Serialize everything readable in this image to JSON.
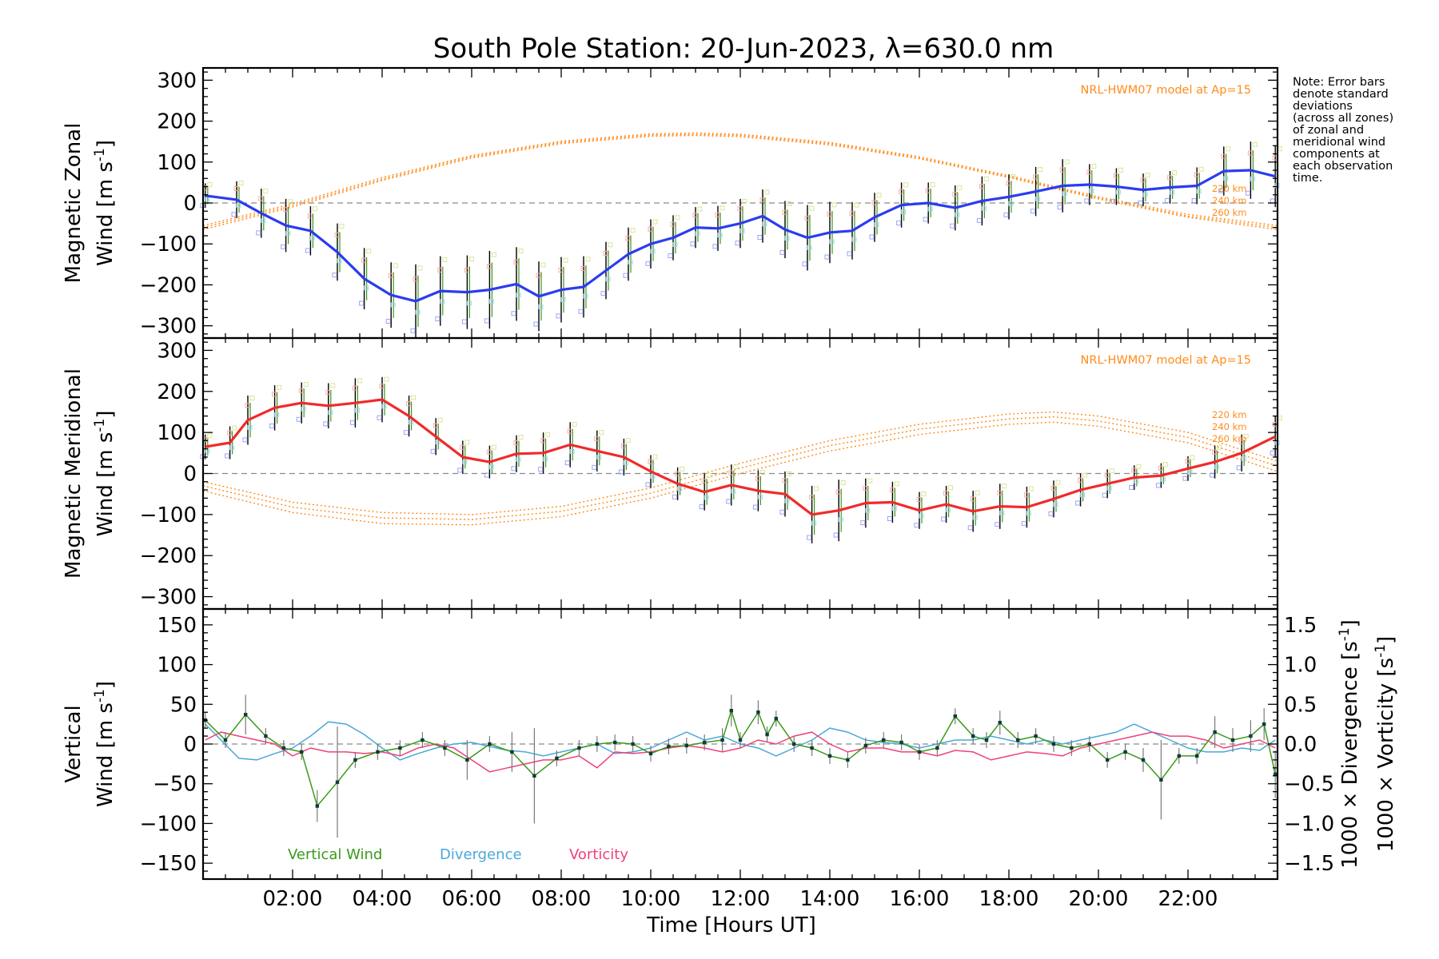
{
  "title": "South Pole Station: 20-Jun-2023, λ=630.0 nm",
  "note_lines": [
    "Note: Error bars",
    "denote standard",
    "deviations",
    "(across all zones)",
    "of zonal and",
    "meridional wind",
    "components at",
    "each observation",
    "time."
  ],
  "x_axis": {
    "label": "Time [Hours UT]",
    "range": [
      0.0,
      24.0
    ],
    "tick_values": [
      2,
      4,
      6,
      8,
      10,
      12,
      14,
      16,
      18,
      20,
      22
    ],
    "tick_labels": [
      "02:00",
      "04:00",
      "06:00",
      "08:00",
      "10:00",
      "12:00",
      "14:00",
      "16:00",
      "18:00",
      "20:00",
      "22:00"
    ]
  },
  "colors": {
    "zonal": "#2a3cf0",
    "meridional": "#f02a2a",
    "vertical": "#3a9a1a",
    "divergence": "#4aa8d8",
    "vorticity": "#f0407a",
    "model": "#ff8c1a",
    "error_bar": "#000000",
    "zero_line": "#8a8a8a"
  },
  "chart_data": [
    {
      "type": "line",
      "panel": "zonal",
      "ylabel_line1": "Magnetic Zonal",
      "ylabel_line2": "Wind [m s",
      "ylabel_sup": "-1",
      "ylabel_close": "]",
      "ylim": [
        -330,
        330
      ],
      "ytick_values": [
        -300,
        -200,
        -100,
        0,
        100,
        200,
        300
      ],
      "ytick_labels": [
        "−300",
        "−200",
        "−100",
        "0",
        "100",
        "200",
        "300"
      ],
      "model_label": "NRL-HWM07 model at Ap=15",
      "altitude_labels": [
        "220 km",
        "240 km",
        "260 km"
      ],
      "x": [
        0.05,
        0.75,
        1.3,
        1.85,
        2.4,
        3.0,
        3.6,
        4.2,
        4.75,
        5.3,
        5.9,
        6.4,
        7.0,
        7.5,
        8.0,
        8.5,
        9.0,
        9.5,
        10.0,
        10.5,
        11.0,
        11.5,
        12.0,
        12.5,
        13.0,
        13.5,
        14.0,
        14.5,
        15.0,
        15.6,
        16.2,
        16.8,
        17.4,
        18.0,
        18.6,
        19.2,
        19.8,
        20.4,
        21.0,
        21.6,
        22.2,
        22.8,
        23.4,
        23.95
      ],
      "values": [
        18,
        8,
        -25,
        -55,
        -68,
        -120,
        -185,
        -225,
        -240,
        -215,
        -218,
        -212,
        -198,
        -228,
        -212,
        -205,
        -165,
        -125,
        -100,
        -85,
        -60,
        -62,
        -50,
        -32,
        -65,
        -85,
        -72,
        -68,
        -35,
        -5,
        0,
        -12,
        5,
        15,
        28,
        42,
        45,
        40,
        32,
        38,
        42,
        78,
        80,
        65
      ],
      "errors": [
        30,
        45,
        60,
        65,
        60,
        70,
        75,
        80,
        90,
        85,
        90,
        95,
        90,
        85,
        80,
        75,
        70,
        65,
        60,
        55,
        50,
        55,
        60,
        65,
        70,
        80,
        75,
        70,
        60,
        55,
        50,
        55,
        60,
        55,
        60,
        65,
        50,
        45,
        40,
        40,
        45,
        60,
        70,
        75
      ],
      "model_series": [
        {
          "name": "220 km",
          "x": [
            0,
            2,
            4,
            6,
            8,
            10,
            11,
            12,
            14,
            16,
            18,
            20,
            22,
            24
          ],
          "values": [
            -65,
            -10,
            55,
            110,
            145,
            163,
            165,
            162,
            142,
            108,
            62,
            10,
            -35,
            -65
          ]
        },
        {
          "name": "240 km",
          "x": [
            0,
            2,
            4,
            6,
            8,
            10,
            11,
            12,
            14,
            16,
            18,
            20,
            22,
            24
          ],
          "values": [
            -60,
            -6,
            58,
            113,
            148,
            166,
            168,
            165,
            145,
            110,
            64,
            12,
            -32,
            -60
          ]
        },
        {
          "name": "260 km",
          "x": [
            0,
            2,
            4,
            6,
            8,
            10,
            11,
            12,
            14,
            16,
            18,
            20,
            22,
            24
          ],
          "values": [
            -55,
            -2,
            62,
            116,
            151,
            169,
            171,
            168,
            148,
            113,
            67,
            15,
            -28,
            -55
          ]
        }
      ]
    },
    {
      "type": "line",
      "panel": "meridional",
      "ylabel_line1": "Magnetic Meridional",
      "ylabel_line2": "Wind [m s",
      "ylabel_sup": "-1",
      "ylabel_close": "]",
      "ylim": [
        -330,
        330
      ],
      "ytick_values": [
        -300,
        -200,
        -100,
        0,
        100,
        200,
        300
      ],
      "ytick_labels": [
        "−300",
        "−200",
        "−100",
        "0",
        "100",
        "200",
        "300"
      ],
      "model_label": "NRL-HWM07 model at Ap=15",
      "altitude_labels": [
        "220 km",
        "240 km",
        "260 km"
      ],
      "x": [
        0.05,
        0.6,
        1.0,
        1.6,
        2.2,
        2.8,
        3.4,
        4.0,
        4.6,
        5.2,
        5.8,
        6.4,
        7.0,
        7.6,
        8.2,
        8.8,
        9.4,
        10.0,
        10.6,
        11.2,
        11.8,
        12.4,
        13.0,
        13.6,
        14.2,
        14.8,
        15.4,
        16.0,
        16.6,
        17.2,
        17.8,
        18.4,
        19.0,
        19.6,
        20.2,
        20.8,
        21.4,
        22.0,
        22.6,
        23.2,
        23.95
      ],
      "values": [
        65,
        75,
        130,
        160,
        172,
        165,
        172,
        180,
        140,
        90,
        40,
        28,
        48,
        50,
        70,
        55,
        40,
        5,
        -25,
        -45,
        -28,
        -42,
        -50,
        -100,
        -90,
        -72,
        -70,
        -90,
        -75,
        -92,
        -80,
        -82,
        -62,
        -40,
        -25,
        -10,
        -5,
        12,
        28,
        50,
        90
      ],
      "errors": [
        30,
        40,
        60,
        55,
        50,
        55,
        60,
        55,
        50,
        45,
        40,
        40,
        45,
        50,
        55,
        50,
        45,
        40,
        40,
        45,
        50,
        50,
        55,
        70,
        75,
        60,
        50,
        45,
        45,
        50,
        55,
        50,
        45,
        40,
        35,
        30,
        30,
        30,
        40,
        45,
        50
      ],
      "model_series": [
        {
          "name": "220 km",
          "x": [
            0,
            2,
            4,
            6,
            8,
            10,
            12,
            14,
            16,
            18,
            19,
            20,
            22,
            24
          ],
          "values": [
            -20,
            -70,
            -95,
            -100,
            -80,
            -35,
            25,
            80,
            120,
            145,
            150,
            140,
            100,
            30
          ]
        },
        {
          "name": "240 km",
          "x": [
            0,
            2,
            4,
            6,
            8,
            10,
            12,
            14,
            16,
            18,
            19,
            20,
            22,
            24
          ],
          "values": [
            -30,
            -82,
            -108,
            -112,
            -92,
            -48,
            13,
            68,
            108,
            133,
            138,
            128,
            88,
            18
          ]
        },
        {
          "name": "260 km",
          "x": [
            0,
            2,
            4,
            6,
            8,
            10,
            12,
            14,
            16,
            18,
            19,
            20,
            22,
            24
          ],
          "values": [
            -42,
            -95,
            -122,
            -125,
            -105,
            -60,
            0,
            55,
            95,
            120,
            125,
            115,
            75,
            5
          ]
        }
      ]
    },
    {
      "type": "line",
      "panel": "vertical",
      "ylabel_line1": "Vertical",
      "ylabel_line2": "Wind [m s",
      "ylabel_sup": "-1",
      "ylabel_close": "]",
      "ylim": [
        -170,
        170
      ],
      "ytick_values": [
        -150,
        -100,
        -50,
        0,
        50,
        100,
        150
      ],
      "ytick_labels": [
        "−150",
        "−100",
        "−50",
        "0",
        "50",
        "100",
        "150"
      ],
      "right_axis": {
        "ylim": [
          -1.7,
          1.7
        ],
        "tick_values": [
          -1.5,
          -1.0,
          -0.5,
          0.0,
          0.5,
          1.0,
          1.5
        ],
        "tick_labels": [
          "−1.5",
          "−1.0",
          "−0.5",
          "0.0",
          "0.5",
          "1.0",
          "1.5"
        ],
        "label_divergence": "1000 × Divergence [s",
        "label_vorticity": "1000 × Vorticity [s",
        "label_sup": "-1",
        "label_close": "]"
      },
      "legend": [
        "Vertical Wind",
        "Divergence",
        "Vorticity"
      ],
      "series": [
        {
          "name": "Vertical Wind",
          "x": [
            0.05,
            0.5,
            0.95,
            1.4,
            1.8,
            2.2,
            2.55,
            3.0,
            3.4,
            3.9,
            4.4,
            4.9,
            5.4,
            5.9,
            6.4,
            6.9,
            7.4,
            7.9,
            8.4,
            8.8,
            9.2,
            9.6,
            10.0,
            10.4,
            10.8,
            11.2,
            11.6,
            11.8,
            12.0,
            12.4,
            12.6,
            12.8,
            13.2,
            13.6,
            14.0,
            14.4,
            14.8,
            15.2,
            15.6,
            16.0,
            16.4,
            16.8,
            17.2,
            17.5,
            17.8,
            18.2,
            18.6,
            19.0,
            19.4,
            19.8,
            20.2,
            20.6,
            21.0,
            21.4,
            21.8,
            22.2,
            22.6,
            23.0,
            23.4,
            23.7,
            23.95
          ],
          "values": [
            30,
            5,
            37,
            10,
            -5,
            -10,
            -78,
            -48,
            -20,
            -10,
            -5,
            5,
            -5,
            -20,
            0,
            -10,
            -40,
            -18,
            -5,
            0,
            2,
            0,
            -12,
            -3,
            -2,
            2,
            5,
            42,
            5,
            40,
            12,
            32,
            0,
            -5,
            -15,
            -20,
            -2,
            5,
            2,
            -10,
            -5,
            35,
            10,
            5,
            27,
            5,
            10,
            0,
            -5,
            0,
            -20,
            -10,
            -20,
            -45,
            -15,
            -15,
            15,
            5,
            10,
            25,
            -38
          ],
          "errors": [
            10,
            10,
            25,
            10,
            10,
            10,
            20,
            70,
            10,
            10,
            10,
            10,
            10,
            25,
            10,
            25,
            60,
            10,
            10,
            10,
            10,
            10,
            10,
            10,
            10,
            10,
            15,
            20,
            10,
            15,
            10,
            10,
            10,
            10,
            10,
            10,
            10,
            10,
            10,
            10,
            10,
            10,
            10,
            10,
            15,
            10,
            10,
            10,
            10,
            10,
            10,
            10,
            15,
            50,
            10,
            10,
            20,
            15,
            20,
            20,
            30
          ]
        },
        {
          "name": "Divergence",
          "x": [
            0.05,
            0.4,
            0.8,
            1.2,
            1.6,
            2.0,
            2.4,
            2.8,
            3.2,
            3.6,
            4.0,
            4.4,
            4.8,
            5.2,
            5.6,
            6.0,
            6.4,
            6.8,
            7.2,
            7.6,
            8.0,
            8.4,
            8.8,
            9.2,
            9.6,
            10.0,
            10.4,
            10.8,
            11.2,
            11.6,
            12.0,
            12.4,
            12.8,
            13.2,
            13.6,
            14.0,
            14.4,
            14.8,
            15.2,
            15.6,
            16.0,
            16.4,
            16.8,
            17.2,
            17.6,
            18.0,
            18.4,
            18.8,
            19.2,
            19.6,
            20.0,
            20.4,
            20.8,
            21.2,
            21.6,
            22.0,
            22.4,
            22.8,
            23.2,
            23.6,
            23.95
          ],
          "values": [
            0.25,
            0.05,
            -0.18,
            -0.2,
            -0.12,
            -0.05,
            0.1,
            0.28,
            0.25,
            0.12,
            -0.05,
            -0.2,
            -0.12,
            -0.05,
            0.0,
            0.02,
            -0.03,
            -0.08,
            -0.1,
            -0.15,
            -0.1,
            -0.05,
            0.0,
            -0.12,
            -0.1,
            -0.05,
            0.05,
            0.15,
            0.05,
            0.1,
            0.0,
            -0.05,
            -0.15,
            -0.05,
            0.05,
            0.2,
            0.15,
            0.05,
            0.02,
            0.0,
            -0.05,
            0.0,
            0.05,
            0.05,
            0.1,
            0.05,
            0.0,
            0.05,
            0.0,
            0.05,
            0.1,
            0.15,
            0.25,
            0.15,
            0.05,
            -0.05,
            -0.1,
            -0.1,
            -0.05,
            -0.08,
            0.05
          ]
        },
        {
          "name": "Vorticity",
          "x": [
            0.05,
            0.4,
            0.8,
            1.2,
            1.6,
            2.0,
            2.4,
            2.8,
            3.2,
            3.6,
            4.0,
            4.4,
            4.8,
            5.2,
            5.6,
            6.0,
            6.4,
            6.8,
            7.2,
            7.6,
            8.0,
            8.4,
            8.8,
            9.2,
            9.6,
            10.0,
            10.4,
            10.8,
            11.2,
            11.6,
            12.0,
            12.4,
            12.8,
            13.2,
            13.6,
            14.0,
            14.4,
            14.8,
            15.2,
            15.6,
            16.0,
            16.4,
            16.8,
            17.2,
            17.6,
            18.0,
            18.4,
            18.8,
            19.2,
            19.6,
            20.0,
            20.4,
            20.8,
            21.2,
            21.6,
            22.0,
            22.4,
            22.8,
            23.2,
            23.6,
            23.95
          ],
          "values": [
            0.05,
            0.15,
            0.1,
            0.05,
            0.0,
            -0.15,
            -0.05,
            -0.1,
            -0.1,
            -0.12,
            -0.1,
            -0.15,
            -0.05,
            0.0,
            -0.05,
            -0.2,
            -0.35,
            -0.3,
            -0.25,
            -0.2,
            -0.2,
            -0.15,
            -0.3,
            -0.1,
            -0.12,
            -0.1,
            -0.05,
            -0.02,
            -0.05,
            -0.1,
            -0.05,
            0.05,
            0.0,
            0.1,
            0.15,
            0.0,
            -0.1,
            -0.05,
            -0.05,
            -0.1,
            -0.1,
            -0.15,
            -0.08,
            -0.1,
            -0.2,
            -0.15,
            -0.1,
            -0.12,
            -0.15,
            -0.05,
            0.0,
            0.05,
            0.1,
            0.15,
            0.1,
            0.1,
            0.05,
            -0.05,
            0.0,
            0.05,
            -0.05
          ]
        }
      ]
    }
  ]
}
